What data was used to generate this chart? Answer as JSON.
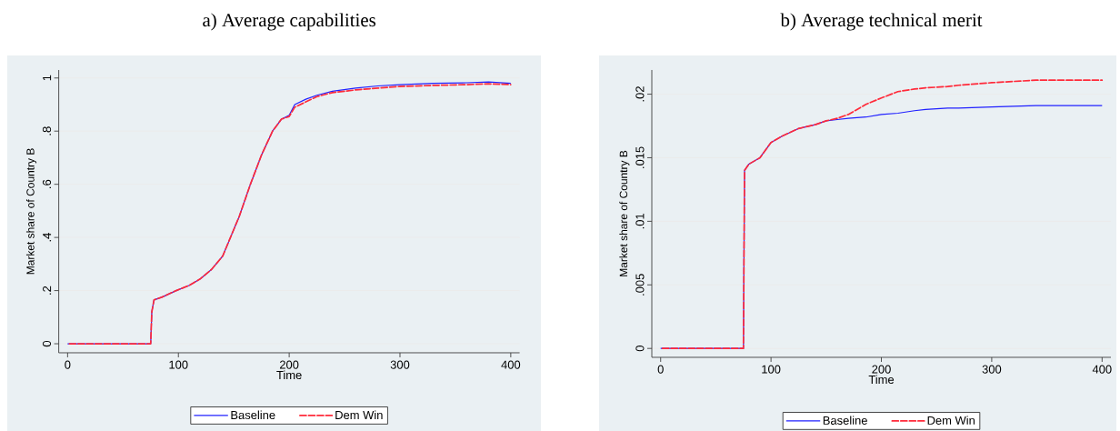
{
  "chart_data": [
    {
      "type": "line",
      "title": "a) Average capabilities",
      "xlabel": "Time",
      "ylabel": "Market share of Country B",
      "xlim": [
        -8,
        408
      ],
      "ylim": [
        -0.034,
        1.03
      ],
      "xticks": [
        0,
        100,
        200,
        300,
        400
      ],
      "yticks": [
        0,
        {
          "value": 0.2,
          "label": ".2"
        },
        {
          "value": 0.4,
          "label": ".4"
        },
        {
          "value": 0.6,
          "label": ".6"
        },
        {
          "value": 0.8,
          "label": ".8"
        },
        1
      ],
      "grid": "y",
      "legend": "bottom",
      "x": [
        0,
        75,
        76,
        78,
        85,
        98,
        110,
        120,
        130,
        140,
        147,
        155,
        165,
        175,
        185,
        193,
        200,
        205,
        215,
        225,
        239,
        260,
        280,
        300,
        330,
        360,
        380,
        400
      ],
      "series": [
        {
          "name": "Baseline",
          "color": "#2020ff",
          "line_style": "solid",
          "values": [
            0,
            0,
            0.12,
            0.165,
            0.175,
            0.2,
            0.22,
            0.245,
            0.28,
            0.33,
            0.4,
            0.48,
            0.6,
            0.71,
            0.8,
            0.845,
            0.86,
            0.9,
            0.92,
            0.935,
            0.95,
            0.962,
            0.97,
            0.975,
            0.98,
            0.982,
            0.985,
            0.98
          ]
        },
        {
          "name": "Dem Win",
          "color": "#ff2a3a",
          "line_style": "dashed",
          "values": [
            0,
            0,
            0.12,
            0.165,
            0.175,
            0.2,
            0.22,
            0.245,
            0.28,
            0.33,
            0.4,
            0.48,
            0.6,
            0.71,
            0.8,
            0.845,
            0.855,
            0.89,
            0.91,
            0.93,
            0.945,
            0.955,
            0.962,
            0.968,
            0.972,
            0.975,
            0.978,
            0.975
          ]
        }
      ]
    },
    {
      "type": "line",
      "title": "b) Average technical merit",
      "xlabel": "Time",
      "ylabel": "Market share of Country B",
      "xlim": [
        -8,
        408
      ],
      "ylim": [
        -0.0007,
        0.0219
      ],
      "xticks": [
        0,
        100,
        200,
        300,
        400
      ],
      "yticks": [
        0,
        {
          "value": 0.005,
          "label": ".005"
        },
        {
          "value": 0.01,
          "label": ".01"
        },
        {
          "value": 0.015,
          "label": ".015"
        },
        {
          "value": 0.02,
          "label": ".02"
        }
      ],
      "grid": "y",
      "legend": "bottom",
      "x": [
        0,
        75,
        76,
        80,
        90,
        100,
        110,
        125,
        140,
        150,
        160,
        170,
        186,
        200,
        215,
        230,
        240,
        260,
        270,
        300,
        340,
        400
      ],
      "series": [
        {
          "name": "Baseline",
          "color": "#2020ff",
          "line_style": "solid",
          "values": [
            0,
            0,
            0.014,
            0.0145,
            0.015,
            0.0162,
            0.0167,
            0.0173,
            0.0176,
            0.0179,
            0.018,
            0.0181,
            0.0182,
            0.0184,
            0.0185,
            0.0187,
            0.0188,
            0.0189,
            0.0189,
            0.019,
            0.0191,
            0.0191
          ]
        },
        {
          "name": "Dem Win",
          "color": "#ff2a3a",
          "line_style": "dashed",
          "values": [
            0,
            0,
            0.014,
            0.0145,
            0.015,
            0.0162,
            0.0167,
            0.0173,
            0.0176,
            0.0179,
            0.0181,
            0.0184,
            0.0192,
            0.0197,
            0.0202,
            0.0204,
            0.0205,
            0.0206,
            0.0207,
            0.0209,
            0.0211,
            0.0211
          ]
        }
      ]
    }
  ]
}
